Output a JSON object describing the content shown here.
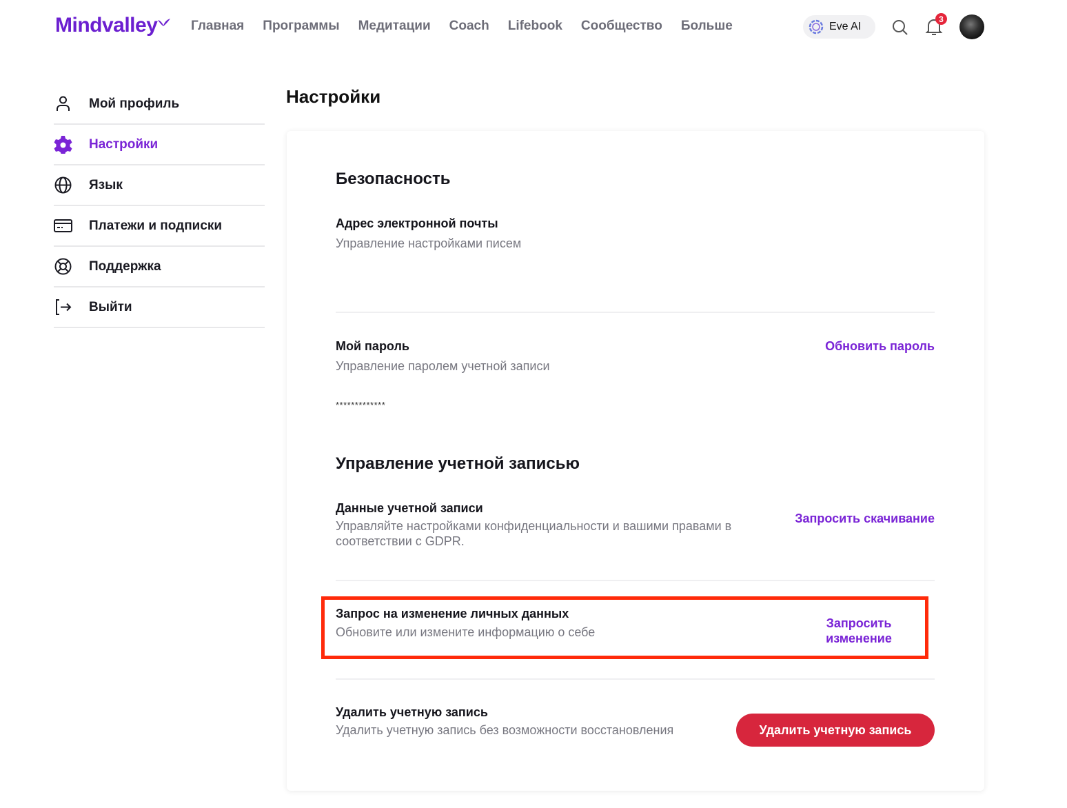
{
  "header": {
    "logo": "Mindvalley",
    "nav": [
      "Главная",
      "Программы",
      "Медитации",
      "Coach",
      "Lifebook",
      "Сообщество",
      "Больше"
    ],
    "eve_label": "Eve AI",
    "notification_count": "3"
  },
  "sidebar": {
    "items": [
      {
        "label": "Мой профиль",
        "icon": "user-icon"
      },
      {
        "label": "Настройки",
        "icon": "gear-icon",
        "active": true
      },
      {
        "label": "Язык",
        "icon": "globe-icon"
      },
      {
        "label": "Платежи и подписки",
        "icon": "credit-card-icon"
      },
      {
        "label": "Поддержка",
        "icon": "lifebuoy-icon"
      },
      {
        "label": "Выйти",
        "icon": "logout-icon"
      }
    ]
  },
  "page_title": "Настройки",
  "security": {
    "heading": "Безопасность",
    "email": {
      "label": "Адрес электронной почты",
      "sub": "Управление настройками писем"
    },
    "password": {
      "label": "Мой пароль",
      "sub": "Управление паролем учетной записи",
      "value": "*************",
      "action": "Обновить пароль"
    }
  },
  "account": {
    "heading": "Управление учетной записью",
    "data": {
      "label": "Данные учетной записи",
      "sub": "Управляйте настройками конфиденциальности и вашими правами в соответствии с GDPR.",
      "action": "Запросить скачивание"
    },
    "change": {
      "label": "Запрос на изменение личных данных",
      "sub": "Обновите или измените информацию о себе",
      "action": "Запросить изменение"
    },
    "delete": {
      "label": "Удалить учетную запись",
      "sub": "Удалить учетную запись без возможности восстановления",
      "action": "Удалить учетную запись"
    }
  },
  "colors": {
    "accent": "#7a24d6",
    "danger": "#d7263d",
    "highlight": "#ff2a0a"
  }
}
